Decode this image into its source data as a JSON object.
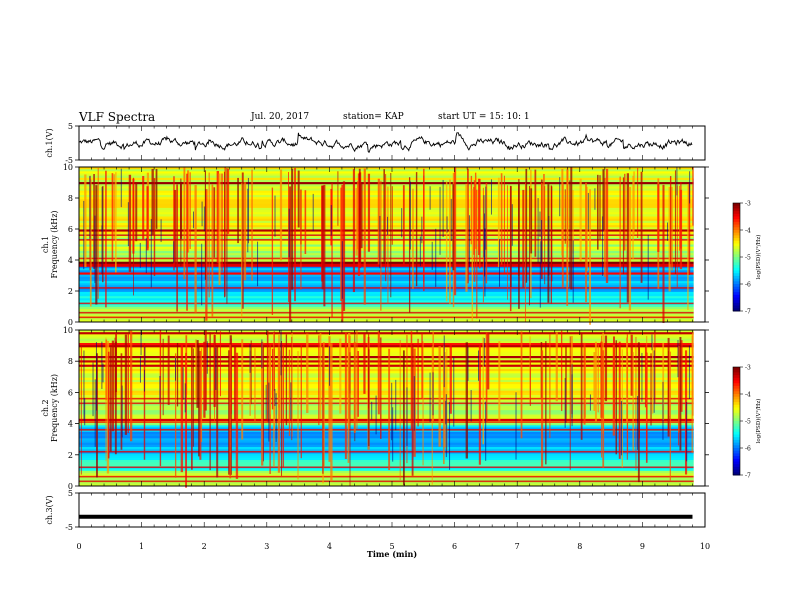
{
  "header": {
    "title": "VLF Spectra",
    "date": "Jul. 20, 2017",
    "station": "station= KAP",
    "start": "start UT = 15: 10: 1"
  },
  "chart_data": [
    {
      "id": "ch1-voltage",
      "type": "line",
      "ylabel": "ch.1(V)",
      "ylim": [
        -5,
        5
      ],
      "yticks": [
        "5",
        "-5"
      ],
      "xlim": [
        0,
        10
      ],
      "shared_x_axis": true,
      "note": "noisy waveform fluctuating roughly between -3 and 3 V over the full record",
      "approx_range_V": [
        -3,
        3
      ],
      "trace_end_min": 9.8
    },
    {
      "id": "ch1-spectrogram",
      "type": "heatmap",
      "ylabel_top": "ch.1",
      "ylabel": "Frequency (kHz)",
      "ylim": [
        0,
        10
      ],
      "yticks": [
        "0",
        "2",
        "4",
        "6",
        "8",
        "10"
      ],
      "xlim": [
        0,
        10
      ],
      "colorbar": {
        "label": "log(PSD)(V²/Hz)",
        "range": [
          -7,
          -3
        ],
        "ticks": [
          "-3",
          "-4",
          "-5",
          "-6",
          "-7"
        ]
      }
    },
    {
      "id": "ch2-spectrogram",
      "type": "heatmap",
      "ylabel_top": "ch.2",
      "ylabel": "Frequency (kHz)",
      "ylim": [
        0,
        10
      ],
      "yticks": [
        "0",
        "2",
        "4",
        "6",
        "8",
        "10"
      ],
      "xlim": [
        0,
        10
      ],
      "colorbar": {
        "label": "log(PSD)(V²/Hz)",
        "range": [
          -7,
          -3
        ],
        "ticks": [
          "-3",
          "-4",
          "-5",
          "-6",
          "-7"
        ]
      }
    },
    {
      "id": "ch3-voltage",
      "type": "line",
      "ylabel": "ch.3(V)",
      "ylim": [
        -5,
        5
      ],
      "yticks": [
        "5",
        "-5"
      ],
      "xlim": [
        0,
        10
      ],
      "xticks": [
        "0",
        "1",
        "2",
        "3",
        "4",
        "5",
        "6",
        "7",
        "8",
        "9",
        "10"
      ],
      "xlabel": "Time (min)",
      "note": "flat thick trace near -2 V",
      "level_V": -2,
      "trace_end_min": 9.8
    }
  ]
}
